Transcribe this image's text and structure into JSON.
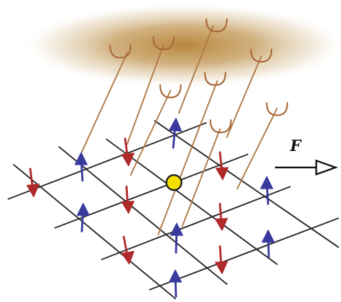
{
  "force": {
    "label": "F"
  },
  "colors": {
    "background": "#ffffff",
    "lattice_line": "#2a2a2a",
    "spin_up": "#3a3a9e",
    "spin_down": "#b02a2a",
    "tether": "#b07a46",
    "cup": "#a8683a",
    "cloud_core": "#b8863c",
    "probe_fill": "#f5e000",
    "probe_stroke": "#222222",
    "force_arrow": "#111111"
  },
  "icons": {
    "probe": "yellow-dot",
    "spin_up": "up-arrow",
    "spin_down": "down-arrow",
    "tether_end": "cup"
  }
}
